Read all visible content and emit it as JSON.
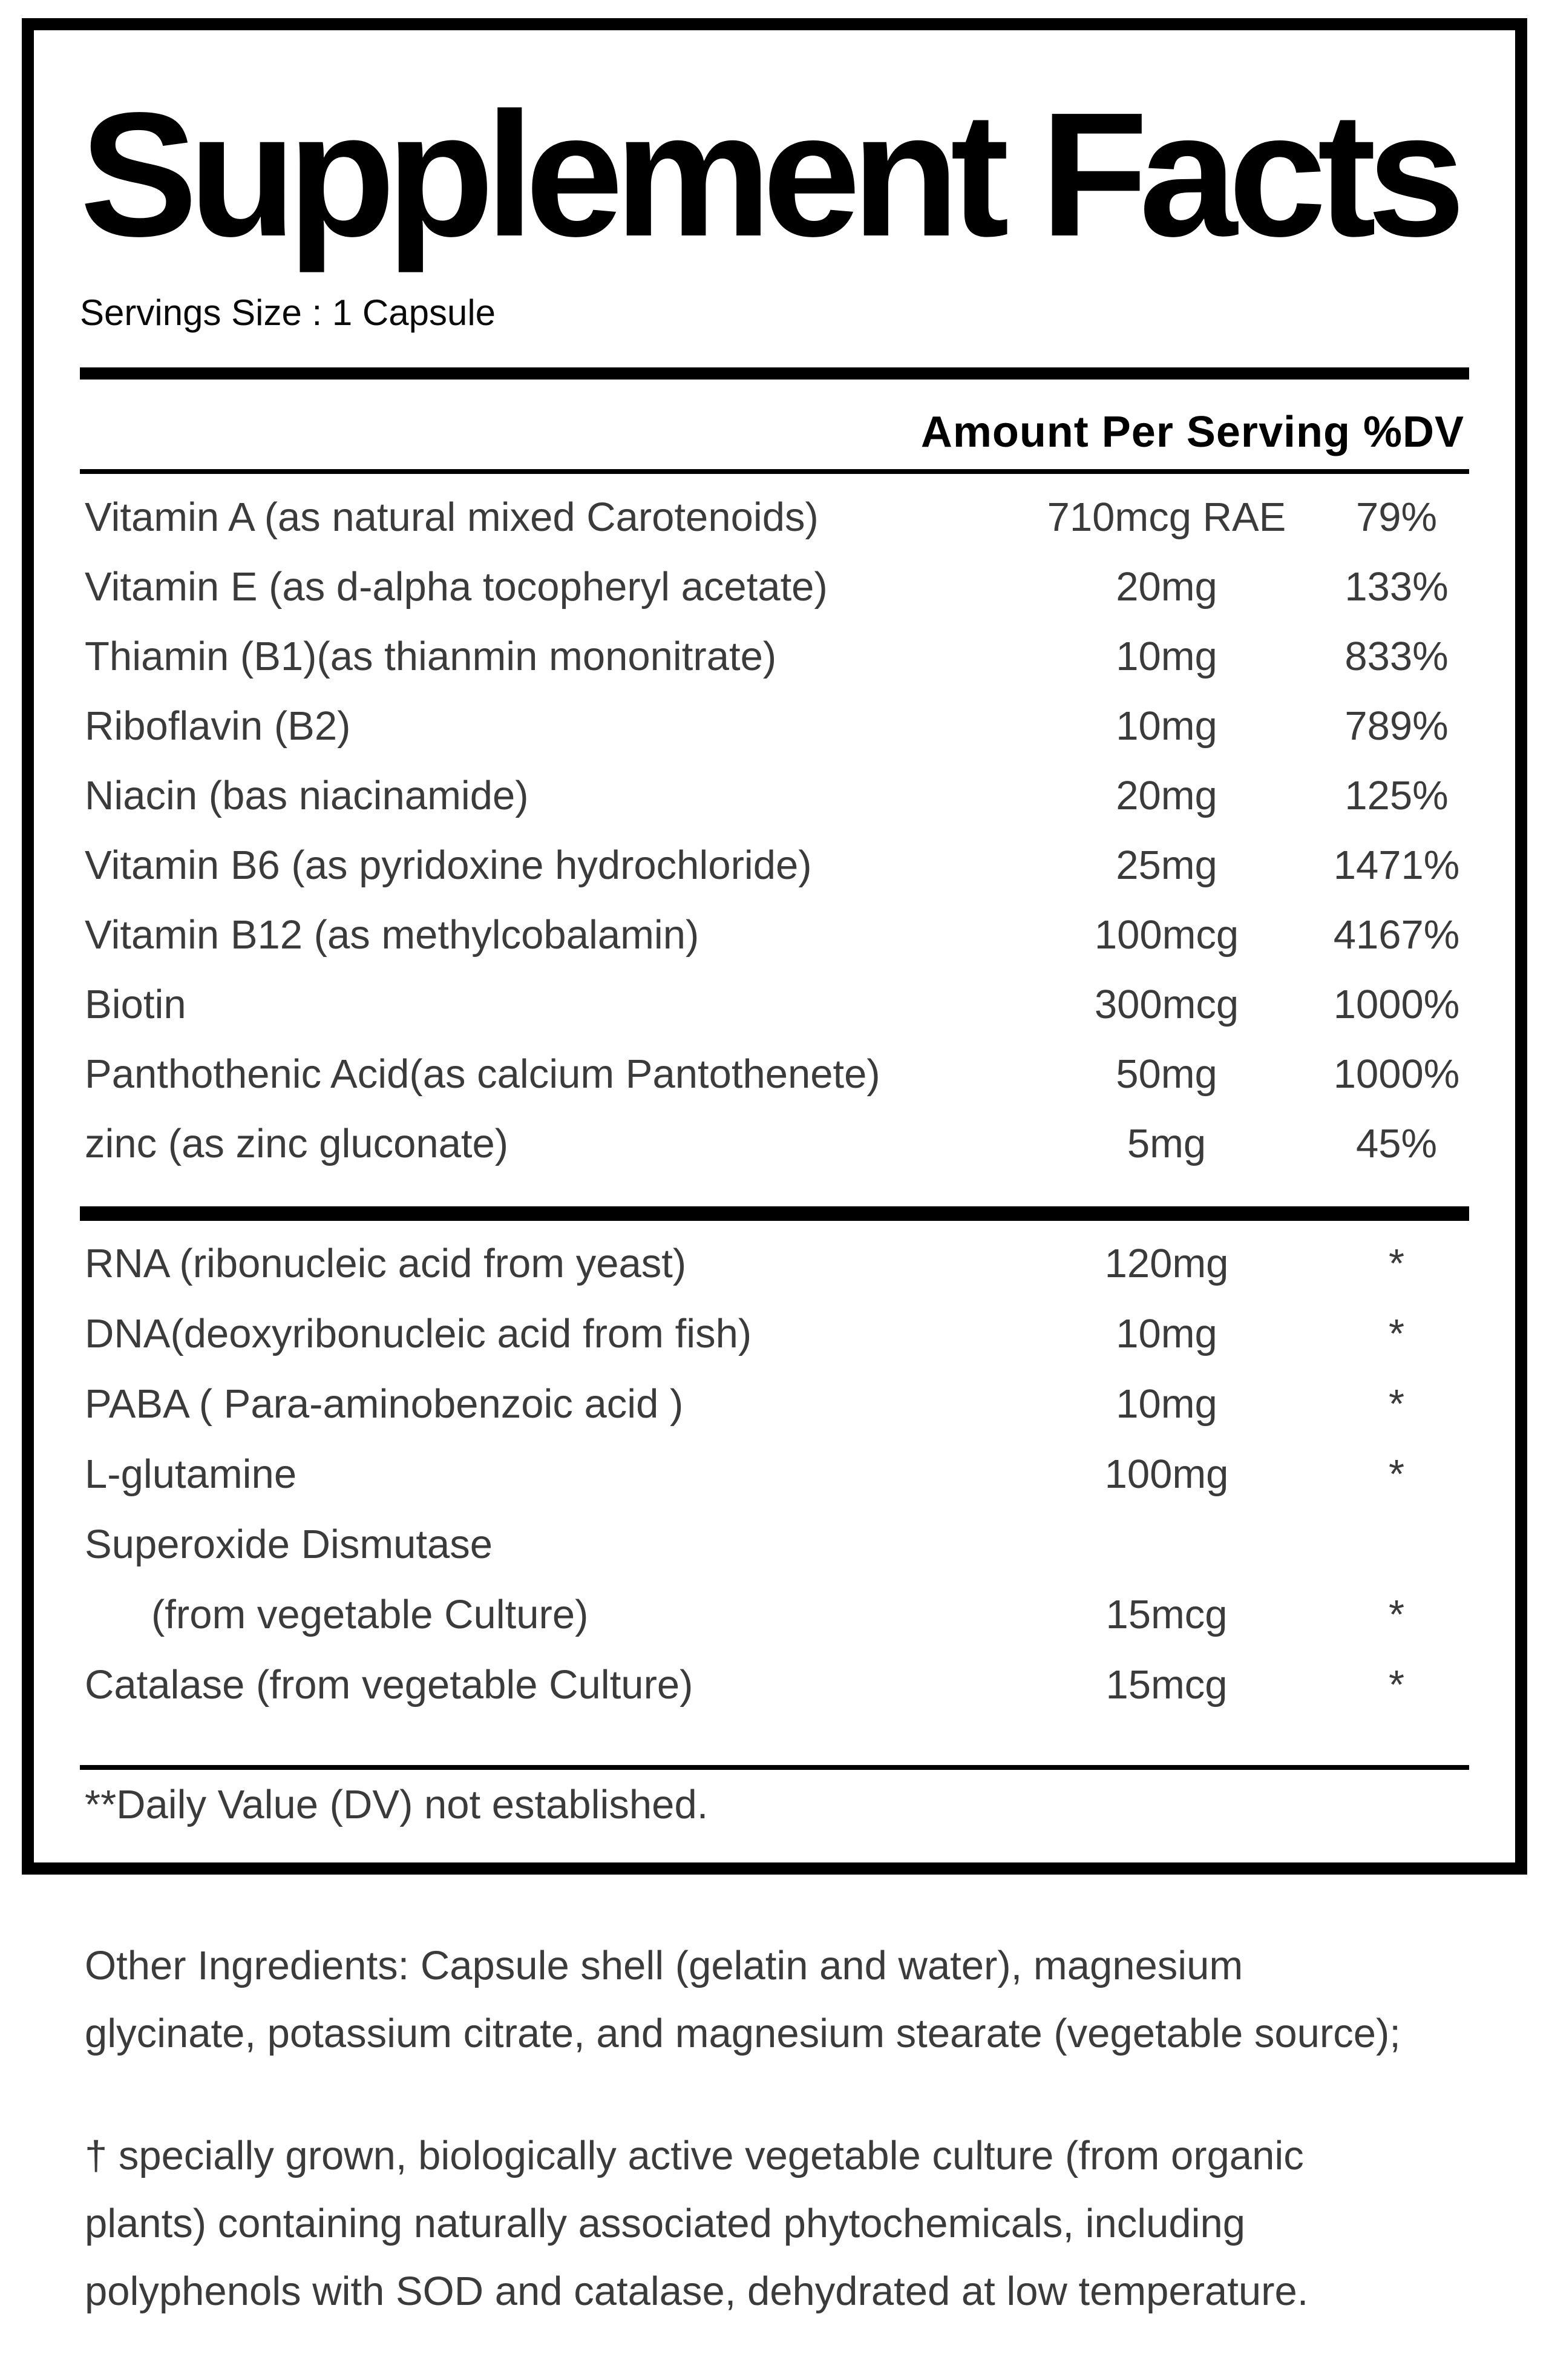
{
  "title": "Supplement Facts",
  "serving_size": "Servings Size : 1 Capsule",
  "table": {
    "header": "Amount Per Serving %DV",
    "section1": [
      {
        "name": "Vitamin A (as natural mixed Carotenoids)",
        "amount": "710mcg RAE",
        "dv": "79%"
      },
      {
        "name": "Vitamin E (as d-alpha tocopheryl acetate)",
        "amount": "20mg",
        "dv": "133%"
      },
      {
        "name": "Thiamin (B1)(as thianmin mononitrate)",
        "amount": "10mg",
        "dv": "833%"
      },
      {
        "name": "Riboflavin (B2)",
        "amount": "10mg",
        "dv": "789%"
      },
      {
        "name": "Niacin (bas niacinamide)",
        "amount": "20mg",
        "dv": "125%"
      },
      {
        "name": "Vitamin B6 (as pyridoxine hydrochloride)",
        "amount": "25mg",
        "dv": "1471%"
      },
      {
        "name": "Vitamin B12 (as methylcobalamin)",
        "amount": "100mcg",
        "dv": "4167%"
      },
      {
        "name": "Biotin",
        "amount": "300mcg",
        "dv": "1000%"
      },
      {
        "name": "Panthothenic Acid(as calcium Pantothenete)",
        "amount": "50mg",
        "dv": "1000%"
      },
      {
        "name": "zinc (as zinc gluconate)",
        "amount": "5mg",
        "dv": "45%"
      }
    ],
    "section2": [
      {
        "name": "RNA (ribonucleic acid from yeast)",
        "amount": "120mg",
        "dv": "*",
        "indent": false
      },
      {
        "name": "DNA(deoxyribonucleic acid from fish)",
        "amount": "10mg",
        "dv": "*",
        "indent": false
      },
      {
        "name": "PABA ( Para-aminobenzoic acid )",
        "amount": "10mg",
        "dv": "*",
        "indent": false
      },
      {
        "name": "L-glutamine",
        "amount": "100mg",
        "dv": "*",
        "indent": false
      },
      {
        "name": "Superoxide Dismutase",
        "amount": "",
        "dv": "",
        "indent": false
      },
      {
        "name": "(from vegetable Culture)",
        "amount": "15mcg",
        "dv": "*",
        "indent": true
      },
      {
        "name": "Catalase (from vegetable Culture)",
        "amount": "15mcg",
        "dv": "*",
        "indent": false
      }
    ],
    "dv_footnote": "**Daily Value (DV) not established."
  },
  "other_ingredients": {
    "lines": [
      "Other Ingredients: Capsule shell (gelatin and water), magnesium",
      "glycinate, potassium citrate, and magnesium stearate (vegetable source);"
    ]
  },
  "culture_note": {
    "lines": [
      "† specially grown, biologically active vegetable culture (from organic",
      "plants) containing naturally associated phytochemicals, including",
      "polyphenols with SOD and catalase, dehydrated at low temperature."
    ]
  },
  "colors": {
    "background": "#ffffff",
    "border": "#000000",
    "heading_text": "#000000",
    "body_text": "#3b3b3b"
  }
}
